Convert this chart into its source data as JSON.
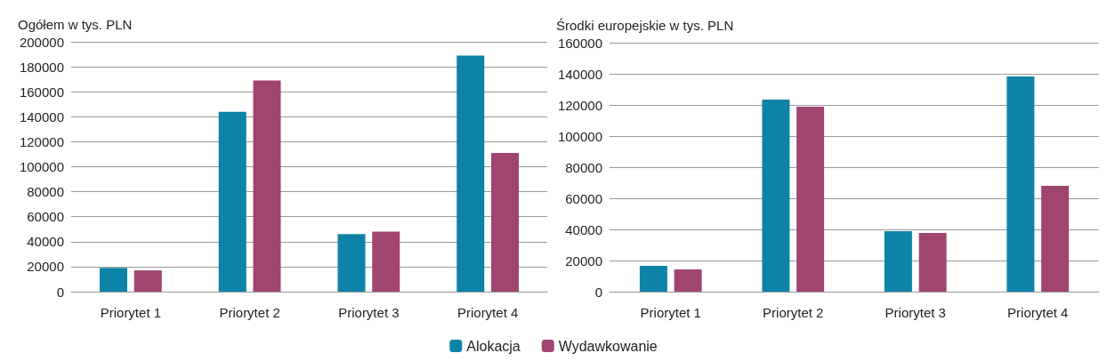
{
  "chart_data": [
    {
      "type": "bar",
      "ylabel": "Ogółem w tys. PLN",
      "categories": [
        "Priorytet 1",
        "Priorytet 2",
        "Priorytet 3",
        "Priorytet 4"
      ],
      "series": [
        {
          "name": "Alokacja",
          "color": "#0e83a8",
          "values": [
            19000,
            144000,
            46000,
            189000
          ]
        },
        {
          "name": "Wydawkowanie",
          "color": "#a04570",
          "values": [
            17000,
            169000,
            48000,
            111000
          ]
        }
      ],
      "ylim": [
        0,
        200000
      ],
      "yticks": [
        0,
        20000,
        40000,
        60000,
        80000,
        100000,
        120000,
        140000,
        160000,
        180000,
        200000
      ],
      "grid": "y",
      "legend": "bottom"
    },
    {
      "type": "bar",
      "ylabel": "Środki europejskie w tys. PLN",
      "categories": [
        "Priorytet 1",
        "Priorytet 2",
        "Priorytet 3",
        "Priorytet 4"
      ],
      "series": [
        {
          "color": "#0e83a8",
          "values": [
            16600,
            123400,
            38900,
            138300
          ]
        },
        {
          "color": "#a04570",
          "values": [
            14300,
            118900,
            37700,
            68000
          ]
        }
      ],
      "ylim": [
        0,
        160000
      ],
      "yticks": [
        0,
        20000,
        40000,
        60000,
        80000,
        100000,
        120000,
        140000,
        160000
      ],
      "grid": "y",
      "legend": false
    }
  ]
}
